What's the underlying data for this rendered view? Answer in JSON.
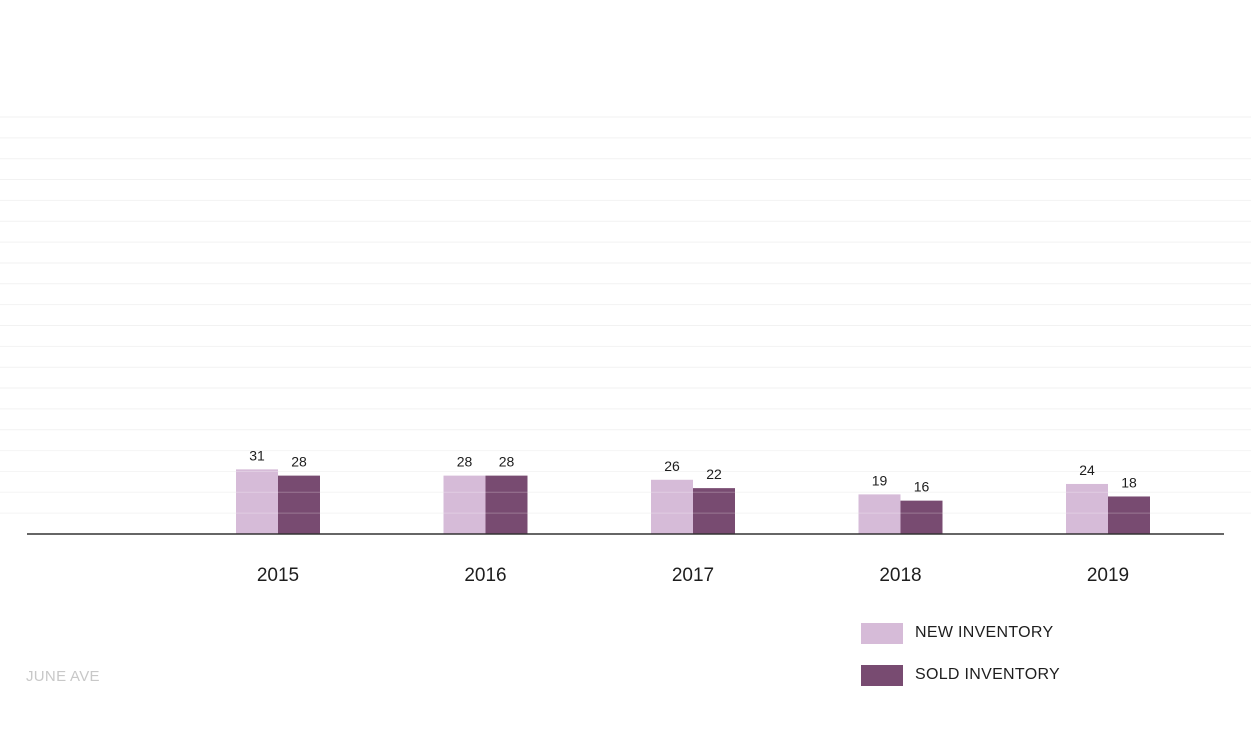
{
  "chart_data": {
    "type": "bar",
    "categories": [
      "2015",
      "2016",
      "2017",
      "2018",
      "2019"
    ],
    "series": [
      {
        "name": "NEW INVENTORY",
        "values": [
          31,
          28,
          26,
          19,
          24
        ],
        "color": "#d6bbd8"
      },
      {
        "name": "SOLD INVENTORY",
        "values": [
          28,
          28,
          22,
          16,
          18
        ],
        "color": "#784b71"
      }
    ],
    "title": "",
    "xlabel": "",
    "ylabel": "",
    "ylim": [
      0,
      200
    ],
    "grid": true,
    "legend": "bottom-right",
    "data_labels": true
  },
  "watermark": "JUNE AVE"
}
